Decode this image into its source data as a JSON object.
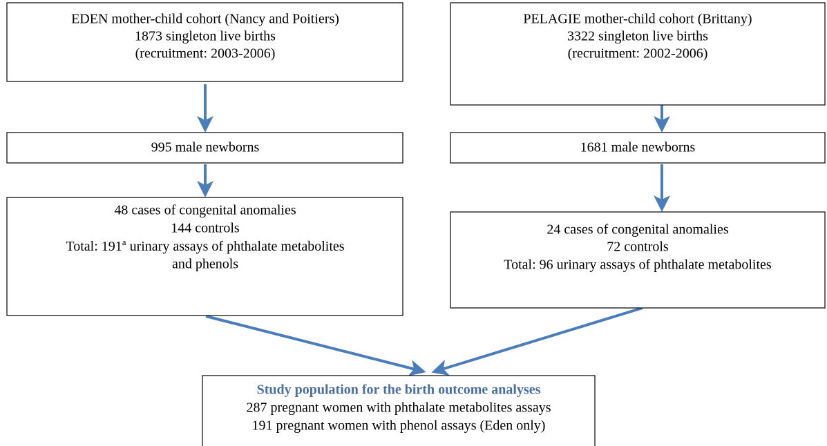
{
  "nodes": [
    {
      "lines": [
        "EDEN mother-child cohort (Nancy and Poitiers)",
        "1873 singleton live births",
        "(recruitment: 2003-2006)"
      ]
    },
    {
      "lines": [
        "PELAGIE mother-child cohort (Brittany)",
        "3322 singleton live births",
        "(recruitment: 2002-2006)"
      ]
    },
    {
      "lines": [
        "995 male newborns"
      ]
    },
    {
      "lines": [
        "1681 male newborns"
      ]
    },
    {
      "lines": [
        "48 cases of congenital anomalies",
        "144 controls",
        {
          "before": "Total: 191",
          "sup": "a",
          "after": " urinary assays of phthalate metabolites"
        },
        "and phenols"
      ]
    },
    {
      "lines": [
        "24 cases of congenital anomalies",
        "72 controls",
        "Total: 96 urinary assays of phthalate metabolites"
      ]
    },
    {
      "title": "Study population for the birth outcome analyses",
      "lines": [
        "287 pregnant women with phthalate metabolites assays",
        "191 pregnant women with phenol assays  (Eden only)"
      ]
    }
  ]
}
